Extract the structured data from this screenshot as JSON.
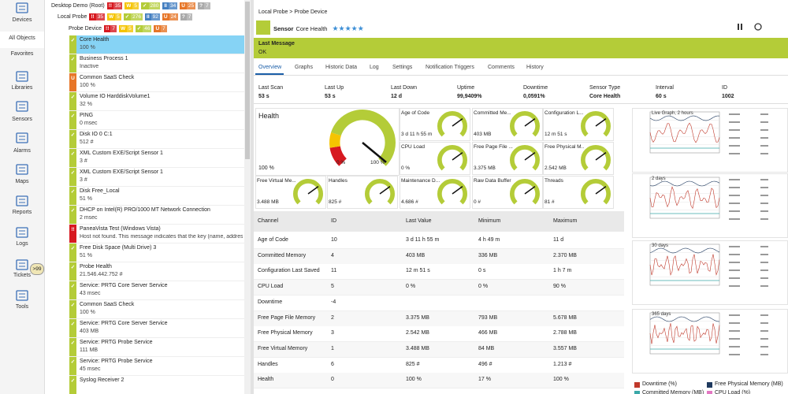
{
  "nav": [
    "Devices",
    "All Objects",
    "Favorites",
    "Libraries",
    "Sensors",
    "Alarms",
    "Maps",
    "Reports",
    "Logs",
    "Tickets",
    "Tools"
  ],
  "tickets_badge": ">99",
  "tree": [
    {
      "name": "Desktop Demo (Root)",
      "badges": [
        {
          "icon": "!!",
          "count": 35,
          "color": "#d71920"
        },
        {
          "icon": "W",
          "count": 5,
          "color": "#f5c400"
        },
        {
          "icon": "✓",
          "count": 280,
          "color": "#b4cc38"
        },
        {
          "icon": "II",
          "count": 34,
          "color": "#447fc1"
        },
        {
          "icon": "U",
          "count": 25,
          "color": "#e77628"
        },
        {
          "icon": "?",
          "count": 7,
          "color": "#aaaaaa"
        }
      ]
    },
    {
      "name": "Local Probe",
      "badges": [
        {
          "icon": "!!",
          "count": 35,
          "color": "#d71920"
        },
        {
          "icon": "W",
          "count": 5,
          "color": "#f5c400"
        },
        {
          "icon": "✓",
          "count": 276,
          "color": "#b4cc38"
        },
        {
          "icon": "II",
          "count": 92,
          "color": "#447fc1"
        },
        {
          "icon": "U",
          "count": 24,
          "color": "#e77628"
        },
        {
          "icon": "?",
          "count": 7,
          "color": "#aaaaaa"
        }
      ]
    },
    {
      "name": "Probe Device",
      "badges": [
        {
          "icon": "!!",
          "count": 7,
          "color": "#d71920"
        },
        {
          "icon": "W",
          "count": 5,
          "color": "#f5c400"
        },
        {
          "icon": "✓",
          "count": 46,
          "color": "#b4cc38"
        },
        {
          "icon": "U",
          "count": 7,
          "color": "#e77628"
        }
      ]
    }
  ],
  "sensors": [
    {
      "icon": "✓",
      "color": "#b4cc38",
      "name": "Core Health",
      "value": "100 %"
    },
    {
      "icon": "✓",
      "color": "#b4cc38",
      "name": "Business Process 1",
      "value": "Inactive"
    },
    {
      "icon": "U",
      "color": "#e77628",
      "name": "Common SaaS Check",
      "value": "100 %"
    },
    {
      "icon": "✓",
      "color": "#b4cc38",
      "name": "Volume IO HarddiskVolume1",
      "value": "32 %"
    },
    {
      "icon": "✓",
      "color": "#b4cc38",
      "name": "PING",
      "value": "0 msec"
    },
    {
      "icon": "✓",
      "color": "#b4cc38",
      "name": "Disk IO 0 C:1",
      "value": "512 #"
    },
    {
      "icon": "✓",
      "color": "#b4cc38",
      "name": "XML Custom EXE/Script Sensor 1",
      "value": "3 #"
    },
    {
      "icon": "✓",
      "color": "#b4cc38",
      "name": "XML Custom EXE/Script Sensor 1",
      "value": "3 #"
    },
    {
      "icon": "✓",
      "color": "#b4cc38",
      "name": "Disk Free_Local",
      "value": "51 %"
    },
    {
      "icon": "✓",
      "color": "#b4cc38",
      "name": "DHCP on Intel(R) PRO/1000 MT Network Connection",
      "value": "2 msec"
    },
    {
      "icon": "!!",
      "color": "#d71920",
      "name": "PaneaVista Test (Windows Vista)",
      "value": "Host not found. This message indicates that the key (name, address, and s..."
    },
    {
      "icon": "✓",
      "color": "#b4cc38",
      "name": "Free Disk Space (Multi Drive) 3",
      "value": "51 %"
    },
    {
      "icon": "✓",
      "color": "#b4cc38",
      "name": "Probe Health",
      "value": "21.546.442.752 #"
    },
    {
      "icon": "✓",
      "color": "#b4cc38",
      "name": "Service: PRTG Core Server Service",
      "value": "43 msec"
    },
    {
      "icon": "✓",
      "color": "#b4cc38",
      "name": "Common SaaS Check",
      "value": "100 %"
    },
    {
      "icon": "✓",
      "color": "#b4cc38",
      "name": "Service: PRTG Core Server Service",
      "value": "403 MB"
    },
    {
      "icon": "✓",
      "color": "#b4cc38",
      "name": "Service: PRTG Probe Service",
      "value": "111 MB"
    },
    {
      "icon": "✓",
      "color": "#b4cc38",
      "name": "Service: PRTG Probe Service",
      "value": "45 msec"
    },
    {
      "icon": "✓",
      "color": "#b4cc38",
      "name": "Syslog Receiver 2"
    }
  ],
  "breadcrumb": "Local Probe > Probe Device",
  "sensor_header": {
    "kind": "Sensor",
    "name": "Core Health",
    "stars": "★★★★★"
  },
  "last_message": {
    "label": "Last Message",
    "text": "OK"
  },
  "tabs": [
    "Overview",
    "Graphs",
    "Historic Data",
    "Log",
    "Settings",
    "Notification Triggers",
    "Comments",
    "History"
  ],
  "stats": [
    {
      "label": "Last Scan",
      "value": "53 s"
    },
    {
      "label": "Last Up",
      "value": "53 s"
    },
    {
      "label": "Last Down",
      "value": "12 d"
    },
    {
      "label": "Uptime",
      "value": "99,9409%"
    },
    {
      "label": "Downtime",
      "value": "0,0591%"
    },
    {
      "label": "Sensor Type",
      "value": "Core Health"
    },
    {
      "label": "Interval",
      "value": "60 s"
    },
    {
      "label": "ID",
      "value": "1002"
    }
  ],
  "health": {
    "name": "Health",
    "value": "100 %",
    "min": "0 %",
    "max": "100 %"
  },
  "gauges": [
    {
      "name": "Age of Code",
      "value": "3 d 11 h 55 m"
    },
    {
      "name": "Committed Me...",
      "value": "403 MB"
    },
    {
      "name": "Configuration L...",
      "value": "12 m 51 s"
    },
    {
      "name": "CPU Load",
      "value": "0 %"
    },
    {
      "name": "Free Page File ...",
      "value": "3.375 MB"
    },
    {
      "name": "Free Physical M...",
      "value": "2.542 MB"
    },
    {
      "name": "Free Virtual Me...",
      "value": "3.488 MB"
    },
    {
      "name": "Handles",
      "value": "825 #"
    },
    {
      "name": "Maintenance D...",
      "value": "4.686 #"
    },
    {
      "name": "Raw Data Buffer",
      "value": "0 #"
    },
    {
      "name": "Threads",
      "value": "81 #"
    }
  ],
  "table": {
    "headers": [
      "Channel",
      "ID",
      "Last Value",
      "Minimum",
      "Maximum"
    ],
    "rows": [
      [
        "Age of Code",
        "10",
        "3 d 11 h 55 m",
        "4 h 49 m",
        "11 d"
      ],
      [
        "Committed Memory",
        "4",
        "403 MB",
        "336 MB",
        "2.370 MB"
      ],
      [
        "Configuration Last Saved",
        "11",
        "12 m 51 s",
        "0 s",
        "1 h 7 m"
      ],
      [
        "CPU Load",
        "5",
        "0 %",
        "0 %",
        "90 %"
      ],
      [
        "Downtime",
        "-4"
      ],
      [
        "Free Page File Memory",
        "2",
        "3.375 MB",
        "793 MB",
        "5.678 MB"
      ],
      [
        "Free Physical Memory",
        "3",
        "2.542 MB",
        "466 MB",
        "2.788 MB"
      ],
      [
        "Free Virtual Memory",
        "1",
        "3.488 MB",
        "84 MB",
        "3.557 MB"
      ],
      [
        "Handles",
        "6",
        "825 #",
        "496 #",
        "1.213 #"
      ],
      [
        "Health",
        "0",
        "100 %",
        "17 %",
        "100 %"
      ]
    ]
  },
  "graphs": [
    "Live Graph, 2 hours",
    "2 days",
    "30 days",
    "365 days"
  ],
  "legend": [
    {
      "name": "Downtime  (%)",
      "color": "#c0392b"
    },
    {
      "name": "Free Physical Memory  (MB)",
      "color": "#1f3a5f"
    },
    {
      "name": "Committed Memory  (MB)",
      "color": "#3aa8a8"
    },
    {
      "name": "CPU Load  (%)",
      "color": "#e377c2"
    }
  ]
}
